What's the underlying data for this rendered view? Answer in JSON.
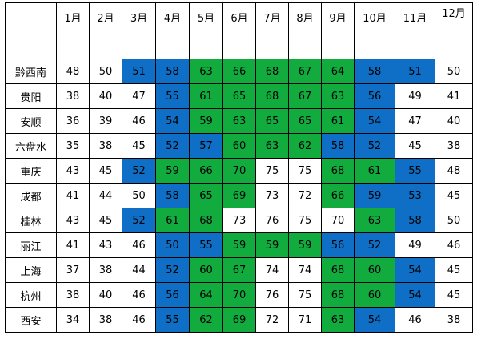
{
  "table": {
    "corner": "",
    "months": [
      "1月",
      "2月",
      "3月",
      "4月",
      "5月",
      "6月",
      "7月",
      "8月",
      "9月",
      "10月",
      "11月",
      "12月"
    ],
    "legend_colors": {
      "blue": "#0f6fc6",
      "green": "#12ac3e",
      "white": "#ffffff"
    },
    "rows": [
      {
        "city": "黔西南",
        "values": [
          48,
          50,
          51,
          58,
          63,
          66,
          68,
          67,
          64,
          58,
          51,
          50
        ],
        "colors": [
          "white",
          "white",
          "blue",
          "blue",
          "green",
          "green",
          "green",
          "green",
          "green",
          "blue",
          "blue",
          "white"
        ]
      },
      {
        "city": "贵阳",
        "values": [
          38,
          40,
          47,
          55,
          61,
          65,
          68,
          67,
          63,
          56,
          49,
          41
        ],
        "colors": [
          "white",
          "white",
          "white",
          "blue",
          "green",
          "green",
          "green",
          "green",
          "green",
          "blue",
          "white",
          "white"
        ]
      },
      {
        "city": "安顺",
        "values": [
          36,
          39,
          46,
          54,
          59,
          63,
          65,
          65,
          61,
          54,
          47,
          40
        ],
        "colors": [
          "white",
          "white",
          "white",
          "blue",
          "green",
          "green",
          "green",
          "green",
          "green",
          "blue",
          "white",
          "white"
        ]
      },
      {
        "city": "六盘水",
        "values": [
          35,
          38,
          45,
          52,
          57,
          60,
          63,
          62,
          58,
          52,
          45,
          38
        ],
        "colors": [
          "white",
          "white",
          "white",
          "blue",
          "blue",
          "green",
          "green",
          "green",
          "blue",
          "blue",
          "white",
          "white"
        ]
      },
      {
        "city": "重庆",
        "values": [
          43,
          45,
          52,
          59,
          66,
          70,
          75,
          75,
          68,
          61,
          55,
          48
        ],
        "colors": [
          "white",
          "white",
          "blue",
          "green",
          "green",
          "green",
          "white",
          "white",
          "green",
          "green",
          "blue",
          "white"
        ]
      },
      {
        "city": "成都",
        "values": [
          41,
          44,
          50,
          58,
          65,
          69,
          73,
          72,
          66,
          59,
          53,
          45
        ],
        "colors": [
          "white",
          "white",
          "white",
          "blue",
          "green",
          "green",
          "white",
          "white",
          "green",
          "blue",
          "blue",
          "white"
        ]
      },
      {
        "city": "桂林",
        "values": [
          43,
          45,
          52,
          61,
          68,
          73,
          76,
          75,
          70,
          63,
          58,
          50
        ],
        "colors": [
          "white",
          "white",
          "blue",
          "green",
          "green",
          "white",
          "white",
          "white",
          "white",
          "green",
          "blue",
          "white"
        ]
      },
      {
        "city": "丽江",
        "values": [
          41,
          43,
          46,
          50,
          55,
          59,
          59,
          59,
          56,
          52,
          49,
          46
        ],
        "colors": [
          "white",
          "white",
          "white",
          "blue",
          "blue",
          "green",
          "green",
          "green",
          "blue",
          "blue",
          "white",
          "white"
        ]
      },
      {
        "city": "上海",
        "values": [
          37,
          38,
          44,
          52,
          60,
          67,
          74,
          74,
          68,
          60,
          54,
          45
        ],
        "colors": [
          "white",
          "white",
          "white",
          "blue",
          "green",
          "green",
          "white",
          "white",
          "green",
          "green",
          "blue",
          "white"
        ]
      },
      {
        "city": "杭州",
        "values": [
          38,
          40,
          46,
          56,
          64,
          70,
          76,
          75,
          68,
          60,
          54,
          45
        ],
        "colors": [
          "white",
          "white",
          "white",
          "blue",
          "green",
          "green",
          "white",
          "white",
          "green",
          "green",
          "blue",
          "white"
        ]
      },
      {
        "city": "西安",
        "values": [
          34,
          38,
          46,
          55,
          62,
          69,
          72,
          71,
          63,
          54,
          46,
          38
        ],
        "colors": [
          "white",
          "white",
          "white",
          "blue",
          "green",
          "green",
          "white",
          "white",
          "green",
          "blue",
          "white",
          "white"
        ]
      }
    ]
  }
}
